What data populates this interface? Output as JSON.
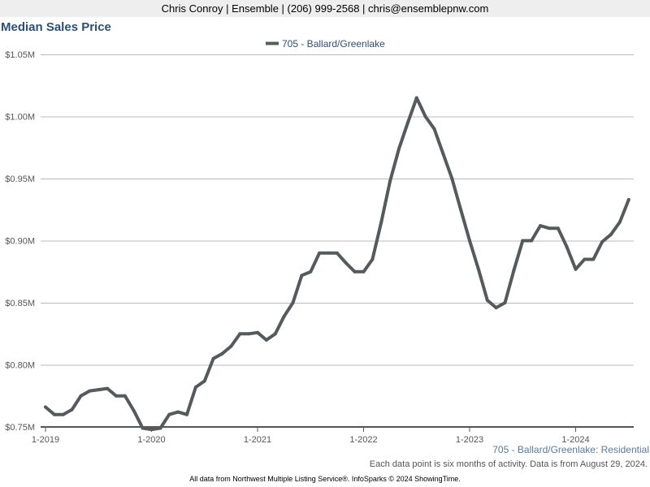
{
  "header": {
    "contact": "Chris Conroy | Ensemble | (206) 999-2568 | chris@ensemblepnw.com"
  },
  "footnotes": {
    "region": "705 - Ballard/Greenlake: Residential",
    "period": "Each data point is six months of activity. Data is from August 29, 2024.",
    "credit": "All data from Northwest Multiple Listing Service®. InfoSparks © 2024 ShowingTime."
  },
  "colors": {
    "line": "#555a5c",
    "title": "#2e4f73",
    "grid": "#bbbbbb"
  },
  "chart_data": {
    "type": "line",
    "title": "Median Sales Price",
    "xlabel": "",
    "ylabel": "",
    "ylim": [
      0.75,
      1.05
    ],
    "y_ticks": [
      {
        "value": 0.75,
        "label": "$0.75M"
      },
      {
        "value": 0.8,
        "label": "$0.80M"
      },
      {
        "value": 0.85,
        "label": "$0.85M"
      },
      {
        "value": 0.9,
        "label": "$0.90M"
      },
      {
        "value": 0.95,
        "label": "$0.95M"
      },
      {
        "value": 1.0,
        "label": "$1.00M"
      },
      {
        "value": 1.05,
        "label": "$1.05M"
      }
    ],
    "x_ticks": [
      "1-2019",
      "1-2020",
      "1-2021",
      "1-2022",
      "1-2023",
      "1-2024"
    ],
    "grid": true,
    "legend": "top-center",
    "series": [
      {
        "name": "705 - Ballard/Greenlake",
        "x": [
          "1-2019",
          "2-2019",
          "3-2019",
          "4-2019",
          "5-2019",
          "6-2019",
          "7-2019",
          "8-2019",
          "9-2019",
          "10-2019",
          "11-2019",
          "12-2019",
          "1-2020",
          "2-2020",
          "3-2020",
          "4-2020",
          "5-2020",
          "6-2020",
          "7-2020",
          "8-2020",
          "9-2020",
          "10-2020",
          "11-2020",
          "12-2020",
          "1-2021",
          "2-2021",
          "3-2021",
          "4-2021",
          "5-2021",
          "6-2021",
          "7-2021",
          "8-2021",
          "9-2021",
          "10-2021",
          "11-2021",
          "12-2021",
          "1-2022",
          "2-2022",
          "3-2022",
          "4-2022",
          "5-2022",
          "6-2022",
          "7-2022",
          "8-2022",
          "9-2022",
          "10-2022",
          "11-2022",
          "12-2022",
          "1-2023",
          "2-2023",
          "3-2023",
          "4-2023",
          "5-2023",
          "6-2023",
          "7-2023",
          "8-2023",
          "9-2023",
          "10-2023",
          "11-2023",
          "12-2023",
          "1-2024",
          "2-2024",
          "3-2024",
          "4-2024",
          "5-2024",
          "6-2024",
          "7-2024"
        ],
        "values": [
          0.766,
          0.76,
          0.76,
          0.764,
          0.775,
          0.779,
          0.78,
          0.781,
          0.775,
          0.775,
          0.763,
          0.749,
          0.748,
          0.749,
          0.76,
          0.762,
          0.76,
          0.782,
          0.787,
          0.805,
          0.809,
          0.815,
          0.825,
          0.825,
          0.826,
          0.82,
          0.825,
          0.839,
          0.85,
          0.872,
          0.875,
          0.89,
          0.89,
          0.89,
          0.882,
          0.875,
          0.875,
          0.885,
          0.915,
          0.948,
          0.974,
          0.995,
          1.015,
          1.0,
          0.99,
          0.97,
          0.95,
          0.925,
          0.9,
          0.877,
          0.852,
          0.846,
          0.85,
          0.876,
          0.9,
          0.9,
          0.912,
          0.91,
          0.91,
          0.895,
          0.877,
          0.885,
          0.885,
          0.899,
          0.905,
          0.915,
          0.933
        ]
      }
    ]
  }
}
